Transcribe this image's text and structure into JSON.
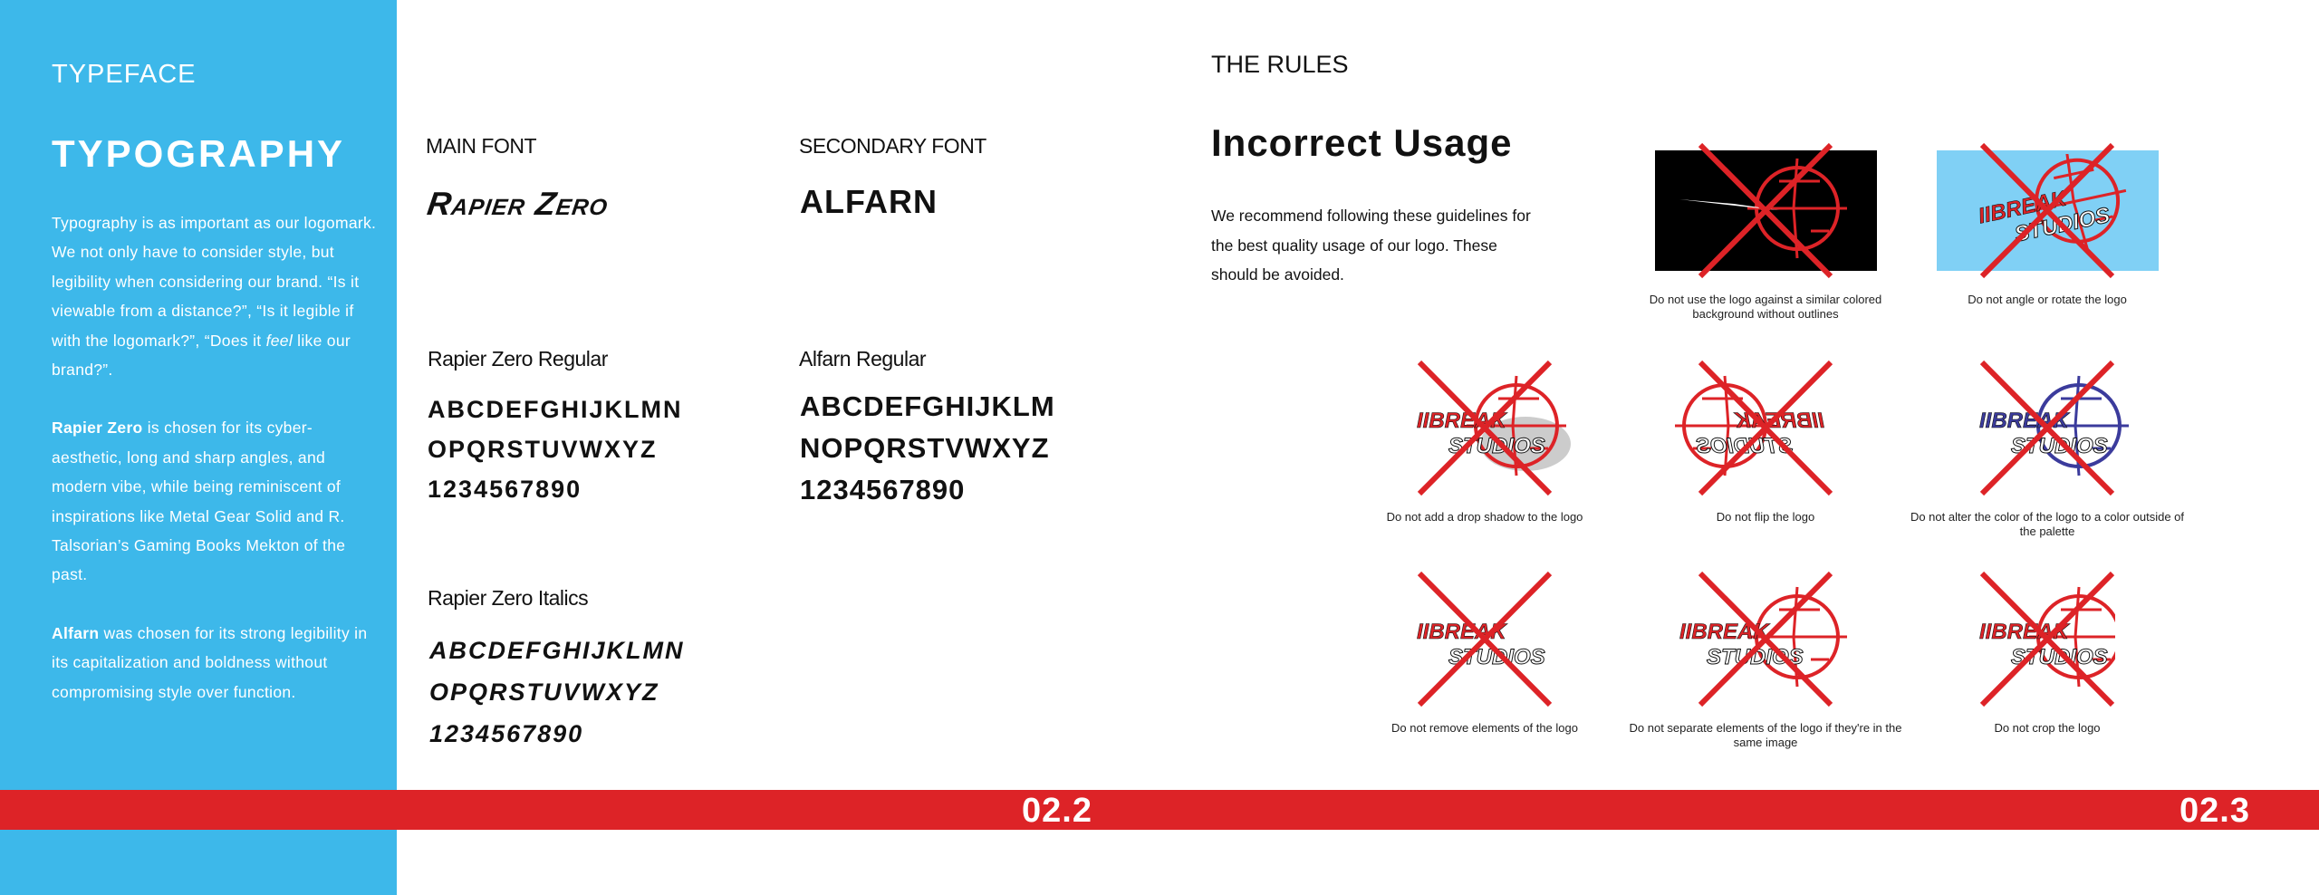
{
  "sidebar": {
    "kicker": "TYPEFACE",
    "title": "TYPOGRAPHY",
    "p1": "Typography is as important as our logomark. We not only have to consider style, but legibility when considering our brand. “Is it viewable from a distance?”, “Is it legible if with the logomark?”, “Does it ",
    "p1_em": "feel",
    "p1_end": " like our brand?”.",
    "p2_bold": "Rapier Zero",
    "p2": " is chosen for its cyber-aesthetic, long and sharp angles, and modern vibe, while being reminiscent of inspirations like Metal Gear Solid and R. Talsorian’s Gaming Books Mekton of the past.",
    "p3_bold": "Alfarn",
    "p3": " was chosen for its strong legibility in its capitalization and boldness without compromising style over function."
  },
  "fonts": {
    "main_label": "MAIN FONT",
    "main_sample": "Rapier Zero",
    "secondary_label": "SECONDARY FONT",
    "secondary_sample": "ALFARN",
    "regular_label": "Rapier Zero Regular",
    "regular_lines": [
      "ABCDEFGHIJKLMN",
      "OPQRSTUVWXYZ",
      "1234567890"
    ],
    "italic_label": "Rapier Zero Italics",
    "italic_lines": [
      "ABCDEFGHIJKLMN",
      "OPQRSTUVWXYZ",
      "1234567890"
    ],
    "alfarn_label": "Alfarn Regular",
    "alfarn_lines": [
      "ABCDEFGHIJKLM",
      "NOPQRSTVWXYZ",
      "1234567890"
    ]
  },
  "rules": {
    "kicker": "THE RULES",
    "title": "Incorrect Usage",
    "paragraph": "We recommend following these guidelines for the best quality usage of our logo. These should be avoided.",
    "logo_text": [
      "IIBREAK",
      "STUDIOS"
    ],
    "tiles": [
      {
        "caption": "Do not use the logo against a similar colored background without outlines",
        "bg": "#000000",
        "logo_color": "#dd2327",
        "variant": "dark"
      },
      {
        "caption": "Do not angle or rotate the logo",
        "bg": "#80d0f5",
        "logo_color": "#dd2327",
        "variant": "rotate"
      },
      {
        "caption": "Do not add a drop shadow to the logo",
        "bg": "",
        "logo_color": "#dd2327",
        "variant": "shadow"
      },
      {
        "caption": "Do not flip the logo",
        "bg": "",
        "logo_color": "#dd2327",
        "variant": "flip"
      },
      {
        "caption": "Do not alter the color of the logo to a color outside of the palette",
        "bg": "",
        "logo_color": "#3b3b9c",
        "variant": "recolor"
      },
      {
        "caption": "Do not remove elements of the logo",
        "bg": "",
        "logo_color": "#dd2327",
        "variant": "remove"
      },
      {
        "caption": "Do not separate elements of the logo if they're in the same image",
        "bg": "",
        "logo_color": "#dd2327",
        "variant": "separate"
      },
      {
        "caption": "Do not crop the logo",
        "bg": "",
        "logo_color": "#dd2327",
        "variant": "crop"
      }
    ],
    "x_color": "#dd2327"
  },
  "footer": {
    "page_left": "02.2",
    "page_right": "02.3",
    "bar_color": "#dd2327",
    "sidebar_color": "#3db8ea"
  }
}
